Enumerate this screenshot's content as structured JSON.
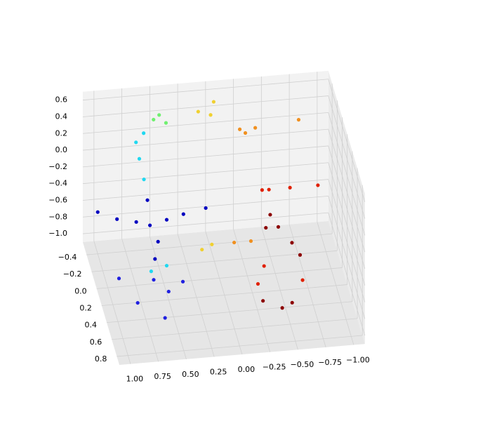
{
  "chart_data": {
    "type": "scatter3d",
    "xlim": [
      -1.1,
      1.1
    ],
    "ylim": [
      -0.55,
      0.9
    ],
    "zlim": [
      -1.1,
      0.7
    ],
    "xticks": [
      {
        "value": 1,
        "label": "1.00"
      },
      {
        "value": 0.75,
        "label": "0.75"
      },
      {
        "value": 0.5,
        "label": "0.50"
      },
      {
        "value": 0.25,
        "label": "0.25"
      },
      {
        "value": 0,
        "label": "0.00"
      },
      {
        "value": -0.25,
        "label": "−0.25"
      },
      {
        "value": -0.5,
        "label": "−0.50"
      },
      {
        "value": -0.75,
        "label": "−0.75"
      },
      {
        "value": -1,
        "label": "−1.00"
      }
    ],
    "yticks": [
      {
        "value": -0.4,
        "label": "−0.4"
      },
      {
        "value": -0.2,
        "label": "−0.2"
      },
      {
        "value": 0,
        "label": "0.0"
      },
      0.2,
      0.4,
      0.6,
      0.8
    ],
    "zticks": [
      0.6,
      0.4,
      0.2,
      {
        "value": 0,
        "label": "0.0"
      },
      {
        "value": -0.2,
        "label": "−0.2"
      },
      {
        "value": -0.4,
        "label": "−0.4"
      },
      {
        "value": -0.6,
        "label": "−0.6"
      },
      {
        "value": -0.8,
        "label": "−0.8"
      },
      {
        "value": -1,
        "label": "−1.0"
      }
    ],
    "grid": true,
    "series": [
      {
        "color": "#0000c0",
        "x": [
          1.0,
          0.85,
          0.7,
          0.6,
          0.55,
          0.45,
          0.3,
          0.1,
          0.6,
          0.6
        ],
        "y": [
          -0.4,
          -0.3,
          -0.2,
          -0.1,
          0,
          -0.1,
          -0.1,
          -0.1,
          -0.2,
          0.1
        ],
        "z": [
          -0.6,
          -0.6,
          -0.55,
          -0.5,
          -0.6,
          -0.45,
          -0.4,
          -0.35,
          -0.3,
          -0.7
        ]
      },
      {
        "color": "#2020e0",
        "x": [
          0.6,
          0.9,
          0.8,
          0.6,
          0.5,
          0.35
        ],
        "y": [
          0.05,
          0,
          0.3,
          0.5,
          0.2,
          0.1
        ],
        "z": [
          -1,
          -1,
          -1,
          -1,
          -1,
          -1
        ]
      },
      {
        "color": "#20d8f0",
        "x": [
          0.62,
          0.65,
          0.68,
          0.6,
          0.6,
          0.45
        ],
        "y": [
          -0.25,
          -0.3,
          -0.3,
          -0.35,
          -0.05,
          -0.1
        ],
        "z": [
          -0.1,
          0.1,
          0.3,
          0.35,
          -1,
          -1
        ]
      },
      {
        "color": "#70f070",
        "x": [
          0.5,
          0.45,
          0.4
        ],
        "y": [
          -0.4,
          -0.4,
          -0.35
        ],
        "z": [
          0.45,
          0.5,
          0.45
        ]
      },
      {
        "color": "#f0d030",
        "x": [
          0.1,
          0.0,
          -0.05,
          0.1,
          0
        ],
        "y": [
          -0.4,
          -0.35,
          -0.45,
          -0.25,
          -0.3
        ],
        "z": [
          0.5,
          0.5,
          0.55,
          -1,
          -1
        ]
      },
      {
        "color": "#f09020",
        "x": [
          -0.25,
          -0.3,
          -0.4,
          -0.8,
          -0.2,
          -0.35
        ],
        "y": [
          -0.3,
          -0.3,
          -0.35,
          -0.4,
          -0.3,
          -0.3
        ],
        "z": [
          0.35,
          0.3,
          0.3,
          0.3,
          -1,
          -1
        ]
      },
      {
        "color": "#e02000",
        "x": [
          -0.45,
          -0.5,
          -0.7,
          -0.95,
          -0.4,
          -0.3,
          -0.7
        ],
        "y": [
          -0.3,
          -0.25,
          -0.3,
          -0.3,
          0,
          0.2,
          0.2
        ],
        "z": [
          -0.4,
          -0.35,
          -0.4,
          -0.4,
          -1,
          -1,
          -1
        ]
      },
      {
        "color": "#8c0000",
        "x": [
          -0.5,
          -0.55,
          -0.65,
          -0.7,
          -0.45,
          -0.45,
          -0.3,
          -0.55
        ],
        "y": [
          -0.2,
          -0.1,
          0,
          0.1,
          -0.15,
          0.5,
          0.4,
          0.45
        ],
        "z": [
          -0.6,
          -0.65,
          -0.75,
          -0.8,
          -0.7,
          -1,
          -1,
          -1
        ]
      }
    ]
  }
}
